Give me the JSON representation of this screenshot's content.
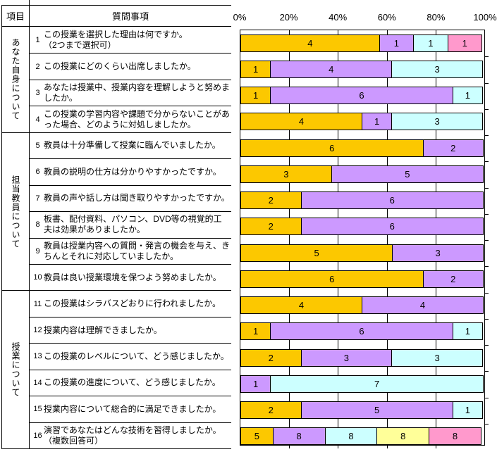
{
  "header": {
    "category_col": "項目",
    "question_col": "質問事項"
  },
  "groups": [
    {
      "label": "あなた自身について",
      "question_count": 4
    },
    {
      "label": "担当教員について",
      "question_count": 6
    },
    {
      "label": "授業について",
      "question_count": 6
    }
  ],
  "questions": [
    {
      "no": "1",
      "text": "この授業を選択した理由は何ですか。",
      "note": "（2つまで選択可）"
    },
    {
      "no": "2",
      "text": "この授業にどのくらい出席しましたか。"
    },
    {
      "no": "3",
      "text": "あなたは授業中、授業内容を理解しようと努めましたか。"
    },
    {
      "no": "4",
      "text": "この授業の学習内容や課題で分からないことがあった場合、どのように対処しましたか。"
    },
    {
      "no": "5",
      "text": "教員は十分準備して授業に臨んでいましたか。"
    },
    {
      "no": "6",
      "text": "教員の説明の仕方は分かりやすかったですか。"
    },
    {
      "no": "7",
      "text": "教員の声や話し方は聞き取りやすかったですか。"
    },
    {
      "no": "8",
      "text": "板書、配付資料、パソコン、DVD等の視覚的工夫は効果がありましたか。"
    },
    {
      "no": "9",
      "text": "教員は授業内容への質問・発言の機会を与え、きちんとそれに対応していましたか。"
    },
    {
      "no": "10",
      "text": "教員は良い授業環境を保つよう努めましたか。"
    },
    {
      "no": "11",
      "text": "この授業はシラバスどおりに行われましたか。"
    },
    {
      "no": "12",
      "text": "授業内容は理解できましたか。"
    },
    {
      "no": "13",
      "text": "この授業のレベルについて、どう感じましたか。"
    },
    {
      "no": "14",
      "text": "この授業の進度について、どう感じましたか。"
    },
    {
      "no": "15",
      "text": "授業内容について総合的に満足できましたか。"
    },
    {
      "no": "16",
      "text": "演習であなたはどんな技術を習得しましたか。",
      "note": "（複数回答可）"
    }
  ],
  "chart_data": {
    "type": "bar",
    "stacked": true,
    "orientation": "horizontal",
    "value_axis": {
      "position": "top",
      "range": [
        0,
        100
      ],
      "unit": "%",
      "ticks": [
        "0%",
        "20%",
        "40%",
        "60%",
        "80%",
        "100%"
      ],
      "gridlines": [
        20,
        40,
        60,
        80
      ],
      "grid": true
    },
    "legend": "none",
    "categories": [
      "1",
      "2",
      "3",
      "4",
      "5",
      "6",
      "7",
      "8",
      "9",
      "10",
      "11",
      "12",
      "13",
      "14",
      "15",
      "16"
    ],
    "rows": [
      {
        "q": "1",
        "segments": [
          {
            "color": "gold",
            "value": 4
          },
          {
            "color": "purple",
            "value": 1
          },
          {
            "color": "cyan",
            "value": 1
          },
          {
            "color": "pink",
            "value": 1
          }
        ]
      },
      {
        "q": "2",
        "segments": [
          {
            "color": "gold",
            "value": 1
          },
          {
            "color": "purple",
            "value": 4
          },
          {
            "color": "cyan",
            "value": 3
          }
        ]
      },
      {
        "q": "3",
        "segments": [
          {
            "color": "gold",
            "value": 1
          },
          {
            "color": "purple",
            "value": 6
          },
          {
            "color": "cyan",
            "value": 1
          }
        ]
      },
      {
        "q": "4",
        "segments": [
          {
            "color": "gold",
            "value": 4
          },
          {
            "color": "purple",
            "value": 1
          },
          {
            "color": "cyan",
            "value": 3
          }
        ]
      },
      {
        "q": "5",
        "segments": [
          {
            "color": "gold",
            "value": 6
          },
          {
            "color": "purple",
            "value": 2
          }
        ]
      },
      {
        "q": "6",
        "segments": [
          {
            "color": "gold",
            "value": 3
          },
          {
            "color": "purple",
            "value": 5
          }
        ]
      },
      {
        "q": "7",
        "segments": [
          {
            "color": "gold",
            "value": 2
          },
          {
            "color": "purple",
            "value": 6
          }
        ]
      },
      {
        "q": "8",
        "segments": [
          {
            "color": "gold",
            "value": 2
          },
          {
            "color": "purple",
            "value": 6
          }
        ]
      },
      {
        "q": "9",
        "segments": [
          {
            "color": "gold",
            "value": 5
          },
          {
            "color": "purple",
            "value": 3
          }
        ]
      },
      {
        "q": "10",
        "segments": [
          {
            "color": "gold",
            "value": 6
          },
          {
            "color": "purple",
            "value": 2
          }
        ]
      },
      {
        "q": "11",
        "segments": [
          {
            "color": "gold",
            "value": 4
          },
          {
            "color": "purple",
            "value": 4
          }
        ]
      },
      {
        "q": "12",
        "segments": [
          {
            "color": "gold",
            "value": 1
          },
          {
            "color": "purple",
            "value": 6
          },
          {
            "color": "cyan",
            "value": 1
          }
        ]
      },
      {
        "q": "13",
        "segments": [
          {
            "color": "gold",
            "value": 2
          },
          {
            "color": "purple",
            "value": 3
          },
          {
            "color": "cyan",
            "value": 3
          }
        ]
      },
      {
        "q": "14",
        "segments": [
          {
            "color": "purple",
            "value": 1
          },
          {
            "color": "cyan",
            "value": 7
          }
        ]
      },
      {
        "q": "15",
        "segments": [
          {
            "color": "gold",
            "value": 2
          },
          {
            "color": "purple",
            "value": 5
          },
          {
            "color": "cyan",
            "value": 1
          }
        ]
      },
      {
        "q": "16",
        "segments": [
          {
            "color": "gold",
            "value": 5
          },
          {
            "color": "purple",
            "value": 8
          },
          {
            "color": "cyan",
            "value": 8
          },
          {
            "color": "yellow",
            "value": 8
          },
          {
            "color": "pink",
            "value": 8
          }
        ]
      }
    ],
    "segment_colors": {
      "gold": "#FCC800",
      "purple": "#CC99FF",
      "cyan": "#CCFFFF",
      "yellow": "#FFFF99",
      "pink": "#FF99CC"
    },
    "border_color": "#000000"
  }
}
